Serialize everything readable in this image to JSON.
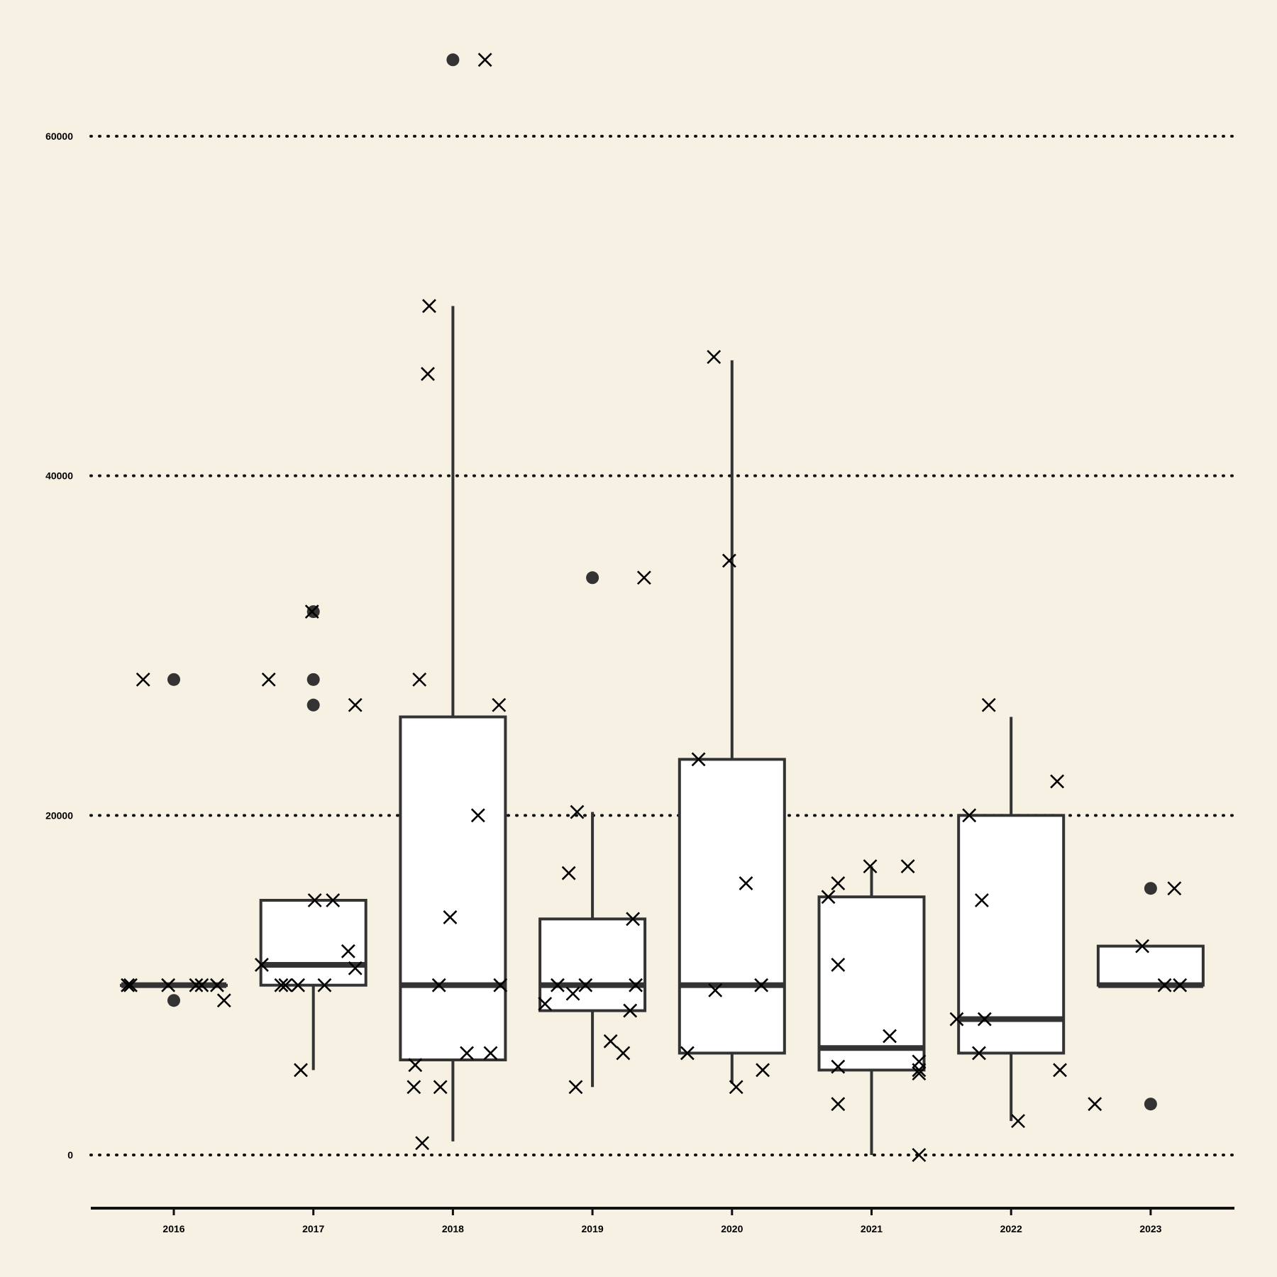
{
  "colors": {
    "background": "#f7f1e4",
    "box_fill": "#ffffff",
    "box_stroke": "#333333",
    "grid": "#111111",
    "marker": "#000000",
    "outlier": "#333333"
  },
  "chart_data": {
    "type": "box",
    "title": "",
    "xlabel": "",
    "ylabel": "",
    "ylim": [
      -3000,
      67000
    ],
    "grid": "horizontal dotted",
    "yticks": [
      {
        "value": 0,
        "label": "0"
      },
      {
        "value": 20000,
        "label": "20000"
      },
      {
        "value": 40000,
        "label": "40000"
      },
      {
        "value": 60000,
        "label": "60000"
      }
    ],
    "categories": [
      "2016",
      "2017",
      "2018",
      "2019",
      "2020",
      "2021",
      "2022",
      "2023"
    ],
    "boxes": [
      {
        "category": "2016",
        "whisker_low": 10000,
        "q1": 10000,
        "median": 10000,
        "q3": 10000,
        "whisker_high": 10000,
        "outliers": [
          28000,
          9100
        ]
      },
      {
        "category": "2017",
        "whisker_low": 5000,
        "q1": 10000,
        "median": 11200,
        "q3": 15000,
        "whisker_high": 15000,
        "outliers": [
          32000,
          28000,
          26500
        ]
      },
      {
        "category": "2018",
        "whisker_low": 800,
        "q1": 5600,
        "median": 10000,
        "q3": 25800,
        "whisker_high": 50000,
        "outliers": [
          64500
        ]
      },
      {
        "category": "2019",
        "whisker_low": 4000,
        "q1": 8500,
        "median": 10000,
        "q3": 13900,
        "whisker_high": 20200,
        "outliers": [
          34000
        ]
      },
      {
        "category": "2020",
        "whisker_low": 4200,
        "q1": 6000,
        "median": 10000,
        "q3": 23300,
        "whisker_high": 46800,
        "outliers": []
      },
      {
        "category": "2021",
        "whisker_low": 0,
        "q1": 5000,
        "median": 6300,
        "q3": 15200,
        "whisker_high": 17000,
        "outliers": []
      },
      {
        "category": "2022",
        "whisker_low": 2000,
        "q1": 6000,
        "median": 8000,
        "q3": 20000,
        "whisker_high": 25800,
        "outliers": []
      },
      {
        "category": "2023",
        "whisker_low": 10000,
        "q1": 10000,
        "median": 10000,
        "q3": 12300,
        "whisker_high": 12300,
        "outliers": [
          15700,
          3000
        ]
      }
    ],
    "points": [
      {
        "category": "2016",
        "jitter": -0.33,
        "y": 10000
      },
      {
        "category": "2016",
        "jitter": -0.31,
        "y": 10000
      },
      {
        "category": "2016",
        "jitter": -0.04,
        "y": 10000
      },
      {
        "category": "2016",
        "jitter": 0.16,
        "y": 10000
      },
      {
        "category": "2016",
        "jitter": 0.2,
        "y": 10000
      },
      {
        "category": "2016",
        "jitter": 0.31,
        "y": 10000
      },
      {
        "category": "2016",
        "jitter": 0.36,
        "y": 9100
      },
      {
        "category": "2016",
        "jitter": -0.22,
        "y": 28000
      },
      {
        "category": "2017",
        "jitter": -0.37,
        "y": 11200
      },
      {
        "category": "2017",
        "jitter": -0.32,
        "y": 28000
      },
      {
        "category": "2017",
        "jitter": -0.23,
        "y": 10000
      },
      {
        "category": "2017",
        "jitter": -0.2,
        "y": 10000
      },
      {
        "category": "2017",
        "jitter": -0.11,
        "y": 10000
      },
      {
        "category": "2017",
        "jitter": -0.09,
        "y": 5000
      },
      {
        "category": "2017",
        "jitter": -0.01,
        "y": 32000
      },
      {
        "category": "2017",
        "jitter": 0.01,
        "y": 15000
      },
      {
        "category": "2017",
        "jitter": 0.08,
        "y": 10000
      },
      {
        "category": "2017",
        "jitter": 0.14,
        "y": 15000
      },
      {
        "category": "2017",
        "jitter": 0.25,
        "y": 12000
      },
      {
        "category": "2017",
        "jitter": 0.3,
        "y": 11000
      },
      {
        "category": "2017",
        "jitter": 0.3,
        "y": 26500
      },
      {
        "category": "2018",
        "jitter": -0.27,
        "y": 5300
      },
      {
        "category": "2018",
        "jitter": -0.28,
        "y": 4000
      },
      {
        "category": "2018",
        "jitter": -0.24,
        "y": 28000
      },
      {
        "category": "2018",
        "jitter": -0.22,
        "y": 700
      },
      {
        "category": "2018",
        "jitter": -0.18,
        "y": 46000
      },
      {
        "category": "2018",
        "jitter": -0.17,
        "y": 50000
      },
      {
        "category": "2018",
        "jitter": -0.1,
        "y": 10000
      },
      {
        "category": "2018",
        "jitter": -0.09,
        "y": 4000
      },
      {
        "category": "2018",
        "jitter": -0.02,
        "y": 14000
      },
      {
        "category": "2018",
        "jitter": 0.1,
        "y": 6000
      },
      {
        "category": "2018",
        "jitter": 0.18,
        "y": 20000
      },
      {
        "category": "2018",
        "jitter": 0.23,
        "y": 64500
      },
      {
        "category": "2018",
        "jitter": 0.27,
        "y": 6000
      },
      {
        "category": "2018",
        "jitter": 0.33,
        "y": 26500
      },
      {
        "category": "2018",
        "jitter": 0.34,
        "y": 10000
      },
      {
        "category": "2019",
        "jitter": -0.34,
        "y": 8900
      },
      {
        "category": "2019",
        "jitter": -0.25,
        "y": 10000
      },
      {
        "category": "2019",
        "jitter": -0.17,
        "y": 16600
      },
      {
        "category": "2019",
        "jitter": -0.14,
        "y": 9500
      },
      {
        "category": "2019",
        "jitter": -0.12,
        "y": 4000
      },
      {
        "category": "2019",
        "jitter": -0.11,
        "y": 20200
      },
      {
        "category": "2019",
        "jitter": -0.05,
        "y": 10000
      },
      {
        "category": "2019",
        "jitter": 0.13,
        "y": 6700
      },
      {
        "category": "2019",
        "jitter": 0.22,
        "y": 6000
      },
      {
        "category": "2019",
        "jitter": 0.27,
        "y": 8500
      },
      {
        "category": "2019",
        "jitter": 0.29,
        "y": 13900
      },
      {
        "category": "2019",
        "jitter": 0.31,
        "y": 10000
      },
      {
        "category": "2019",
        "jitter": 0.37,
        "y": 34000
      },
      {
        "category": "2020",
        "jitter": -0.32,
        "y": 6000
      },
      {
        "category": "2020",
        "jitter": -0.24,
        "y": 23300
      },
      {
        "category": "2020",
        "jitter": -0.12,
        "y": 9700
      },
      {
        "category": "2020",
        "jitter": -0.13,
        "y": 47000
      },
      {
        "category": "2020",
        "jitter": -0.02,
        "y": 35000
      },
      {
        "category": "2020",
        "jitter": 0.03,
        "y": 4000
      },
      {
        "category": "2020",
        "jitter": 0.1,
        "y": 16000
      },
      {
        "category": "2020",
        "jitter": 0.21,
        "y": 10000
      },
      {
        "category": "2020",
        "jitter": 0.22,
        "y": 5000
      },
      {
        "category": "2021",
        "jitter": -0.31,
        "y": 15200
      },
      {
        "category": "2021",
        "jitter": -0.24,
        "y": 16000
      },
      {
        "category": "2021",
        "jitter": -0.24,
        "y": 5200
      },
      {
        "category": "2021",
        "jitter": -0.24,
        "y": 11200
      },
      {
        "category": "2021",
        "jitter": -0.24,
        "y": 3000
      },
      {
        "category": "2021",
        "jitter": -0.01,
        "y": 17000
      },
      {
        "category": "2021",
        "jitter": 0.13,
        "y": 7000
      },
      {
        "category": "2021",
        "jitter": 0.26,
        "y": 17000
      },
      {
        "category": "2021",
        "jitter": 0.34,
        "y": 5500
      },
      {
        "category": "2021",
        "jitter": 0.34,
        "y": 5000
      },
      {
        "category": "2021",
        "jitter": 0.34,
        "y": 4800
      },
      {
        "category": "2021",
        "jitter": 0.34,
        "y": 0
      },
      {
        "category": "2022",
        "jitter": -0.39,
        "y": 8000
      },
      {
        "category": "2022",
        "jitter": -0.3,
        "y": 20000
      },
      {
        "category": "2022",
        "jitter": -0.23,
        "y": 6000
      },
      {
        "category": "2022",
        "jitter": -0.21,
        "y": 15000
      },
      {
        "category": "2022",
        "jitter": -0.19,
        "y": 8000
      },
      {
        "category": "2022",
        "jitter": -0.16,
        "y": 26500
      },
      {
        "category": "2022",
        "jitter": 0.05,
        "y": 2000
      },
      {
        "category": "2022",
        "jitter": 0.33,
        "y": 22000
      },
      {
        "category": "2022",
        "jitter": 0.35,
        "y": 5000
      },
      {
        "category": "2023",
        "jitter": -0.4,
        "y": 3000
      },
      {
        "category": "2023",
        "jitter": -0.06,
        "y": 12300
      },
      {
        "category": "2023",
        "jitter": 0.1,
        "y": 10000
      },
      {
        "category": "2023",
        "jitter": 0.17,
        "y": 15700
      },
      {
        "category": "2023",
        "jitter": 0.21,
        "y": 10000
      }
    ]
  }
}
